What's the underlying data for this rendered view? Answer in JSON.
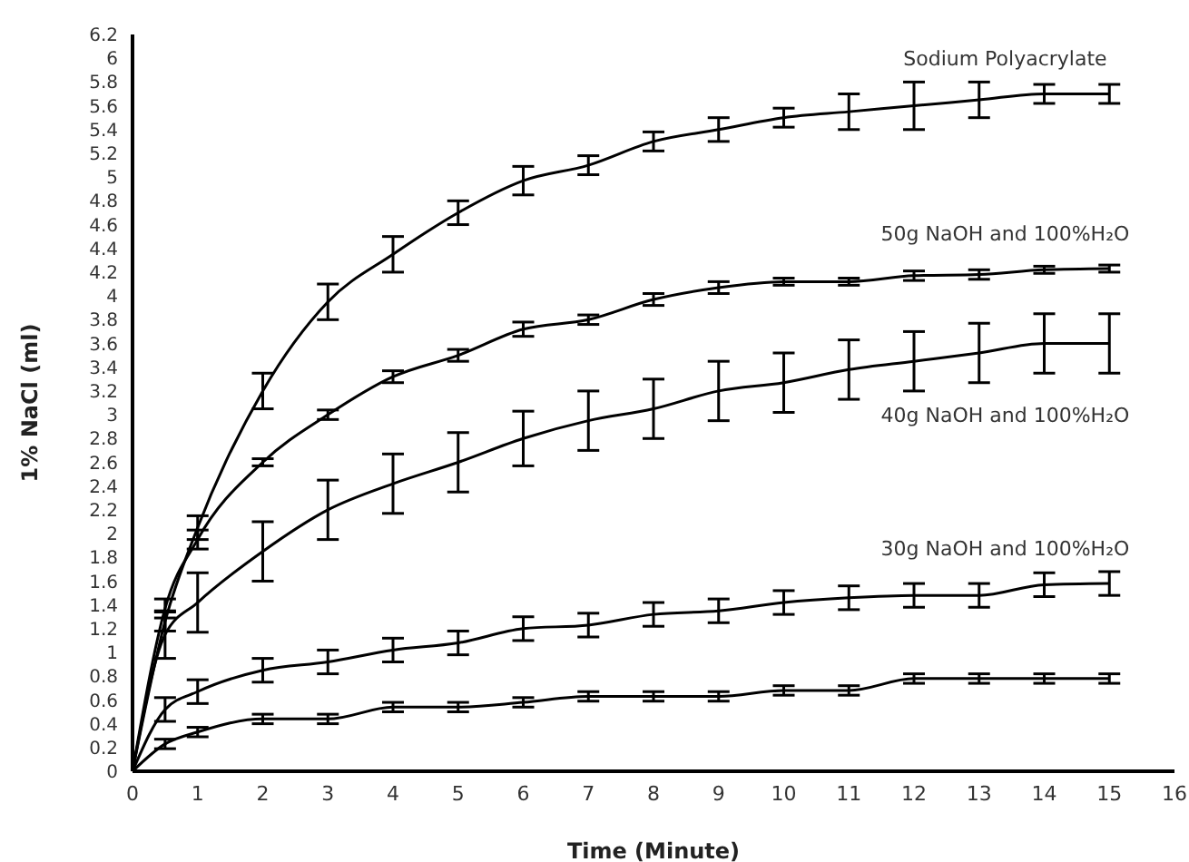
{
  "chart_data": {
    "type": "line",
    "xlabel": "Time (Minute)",
    "ylabel": "1% NaCl (ml)",
    "x": [
      0,
      0.5,
      1,
      2,
      3,
      4,
      5,
      6,
      7,
      8,
      9,
      10,
      11,
      12,
      13,
      14,
      15
    ],
    "series": [
      {
        "name": "Sodium Polyacrylate",
        "color": "#000000",
        "values": [
          0,
          1.26,
          2.05,
          3.2,
          3.95,
          4.35,
          4.7,
          4.97,
          5.1,
          5.3,
          5.4,
          5.5,
          5.55,
          5.6,
          5.65,
          5.7,
          5.7
        ],
        "errors": [
          null,
          0.08,
          0.1,
          0.15,
          0.15,
          0.15,
          0.1,
          0.12,
          0.08,
          0.08,
          0.1,
          0.08,
          0.15,
          0.2,
          0.15,
          0.08,
          0.08
        ]
      },
      {
        "name": "50g NaOH and 100%H₂O",
        "color": "#000000",
        "values": [
          0,
          1.37,
          1.95,
          2.6,
          3.0,
          3.32,
          3.5,
          3.72,
          3.8,
          3.97,
          4.07,
          4.12,
          4.12,
          4.17,
          4.18,
          4.22,
          4.23
        ],
        "errors": [
          null,
          0.08,
          0.08,
          0.03,
          0.04,
          0.05,
          0.05,
          0.06,
          0.04,
          0.05,
          0.05,
          0.03,
          0.03,
          0.04,
          0.04,
          0.03,
          0.03
        ]
      },
      {
        "name": "40g NaOH and  100%H₂O",
        "color": "#000000",
        "values": [
          0,
          1.15,
          1.42,
          1.85,
          2.2,
          2.42,
          2.6,
          2.8,
          2.95,
          3.05,
          3.2,
          3.27,
          3.38,
          3.45,
          3.52,
          3.6,
          3.6
        ],
        "errors": [
          null,
          0.2,
          0.25,
          0.25,
          0.25,
          0.25,
          0.25,
          0.23,
          0.25,
          0.25,
          0.25,
          0.25,
          0.25,
          0.25,
          0.25,
          0.25,
          0.25
        ]
      },
      {
        "name": "30g NaOH and 100%H₂O",
        "color": "#000000",
        "values": [
          0,
          0.52,
          0.67,
          0.85,
          0.92,
          1.02,
          1.08,
          1.2,
          1.23,
          1.32,
          1.35,
          1.42,
          1.46,
          1.48,
          1.48,
          1.57,
          1.58
        ],
        "errors": [
          null,
          0.1,
          0.1,
          0.1,
          0.1,
          0.1,
          0.1,
          0.1,
          0.1,
          0.1,
          0.1,
          0.1,
          0.1,
          0.1,
          0.1,
          0.1,
          0.1
        ]
      },
      {
        "color": "#000000",
        "values": [
          0,
          0.23,
          0.33,
          0.44,
          0.44,
          0.54,
          0.54,
          0.58,
          0.63,
          0.63,
          0.63,
          0.68,
          0.68,
          0.78,
          0.78,
          0.78,
          0.78
        ],
        "errors": [
          null,
          0.04,
          0.04,
          0.04,
          0.04,
          0.04,
          0.04,
          0.04,
          0.04,
          0.04,
          0.04,
          0.04,
          0.04,
          0.04,
          0.04,
          0.04,
          0.04
        ]
      }
    ],
    "xlim": [
      0,
      16
    ],
    "xticks": [
      0,
      1,
      2,
      3,
      4,
      5,
      6,
      7,
      8,
      9,
      10,
      11,
      12,
      13,
      14,
      15,
      16
    ],
    "ylim": [
      0,
      6.2
    ],
    "yticks": [
      0,
      0.2,
      0.4,
      0.6,
      0.8,
      1,
      1.2,
      1.4,
      1.6,
      1.8,
      2,
      2.2,
      2.4,
      2.6,
      2.8,
      3,
      3.2,
      3.4,
      3.6,
      3.8,
      4,
      4.2,
      4.4,
      4.6,
      4.8,
      5,
      5.2,
      5.4,
      5.6,
      5.8,
      6,
      6.2
    ],
    "grid": false,
    "legend": false,
    "marker": "none",
    "line_style": "solid"
  }
}
